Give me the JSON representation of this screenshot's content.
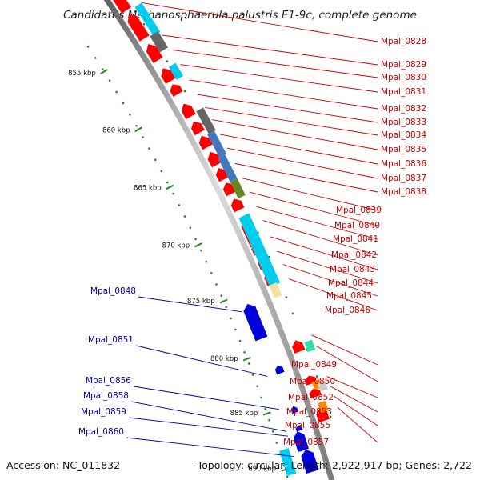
{
  "title": "Candidatus Methanosphaerula palustris E1-9c, complete genome",
  "footer": {
    "accession": "Accession: NC_011832",
    "topology": "Topology: circular; Length: 2,922,917 bp; Genes: 2,722"
  },
  "scale_ticks": [
    "855 kbp",
    "860 kbp",
    "865 kbp",
    "870 kbp",
    "875 kbp",
    "880 kbp",
    "885 kbp",
    "890 kbp"
  ],
  "gene_labels_forward": [
    "Mpal_0828",
    "Mpal_0829",
    "Mpal_0830",
    "Mpal_0831",
    "Mpal_0832",
    "Mpal_0833",
    "Mpal_0834",
    "Mpal_0835",
    "Mpal_0836",
    "Mpal_0837",
    "Mpal_0838",
    "Mpal_0839",
    "Mpal_0840",
    "Mpal_0841",
    "Mpal_0842",
    "Mpal_0843",
    "Mpal_0844",
    "Mpal_0845",
    "Mpal_0846",
    "Mpal_0849",
    "Mpal_0850",
    "Mpal_0852",
    "Mpal_0853",
    "Mpal_0855",
    "Mpal_0857"
  ],
  "gene_labels_reverse": [
    "Mpal_0848",
    "Mpal_0851",
    "Mpal_0856",
    "Mpal_0858",
    "Mpal_0859",
    "Mpal_0860"
  ],
  "colors": {
    "forward_cds": "#ff0000",
    "reverse_cds": "#0000dd",
    "rrna": "#00ccee",
    "trna": "#666666",
    "misc_feature": "#4477bb",
    "other": "#668822",
    "repeat": "#ff8800",
    "forward_label": "#cc0000",
    "reverse_label": "#0000aa",
    "tick": "#228822"
  }
}
